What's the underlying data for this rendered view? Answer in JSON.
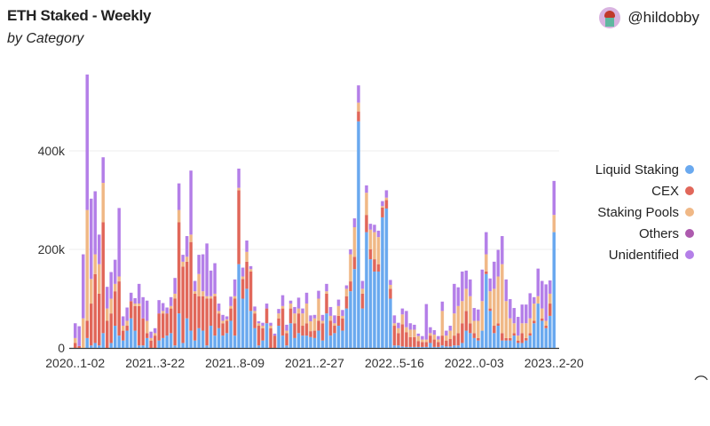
{
  "header": {
    "title": "ETH Staked - Weekly",
    "subtitle": "by Category",
    "author": "@hildobby"
  },
  "chart_data": {
    "type": "bar",
    "stacked": true,
    "title": "ETH Staked - Weekly",
    "subtitle": "by Category",
    "xlabel": "",
    "ylabel": "",
    "ylim": [
      0,
      570000
    ],
    "yticks": [
      0,
      200000,
      400000
    ],
    "ytick_labels": [
      "0",
      "200k",
      "400k"
    ],
    "xtick_every": 20,
    "xtick_labels": [
      "2020..1-02",
      "2021..3-22",
      "2021..8-09",
      "2021..2-27",
      "2022..5-16",
      "2022..0-03",
      "2023..2-20"
    ],
    "grid": true,
    "legend_position": "right",
    "unit_scale": 1000,
    "series": [
      {
        "name": "Liquid Staking",
        "color": "#6aa9ef",
        "values": [
          0,
          0,
          0,
          20,
          5,
          10,
          5,
          30,
          0,
          10,
          45,
          25,
          15,
          35,
          60,
          35,
          5,
          5,
          20,
          0,
          0,
          15,
          20,
          25,
          30,
          5,
          70,
          10,
          60,
          35,
          15,
          40,
          35,
          5,
          45,
          25,
          40,
          25,
          30,
          55,
          25,
          170,
          100,
          120,
          75,
          40,
          5,
          15,
          50,
          0,
          0,
          45,
          25,
          5,
          50,
          20,
          30,
          25,
          25,
          22,
          20,
          35,
          15,
          70,
          25,
          30,
          45,
          35,
          80,
          115,
          160,
          460,
          80,
          235,
          180,
          155,
          155,
          265,
          283,
          100,
          5,
          5,
          3,
          2,
          2,
          2,
          2,
          2,
          2,
          10,
          2,
          2,
          5,
          3,
          3,
          5,
          5,
          10,
          35,
          30,
          20,
          15,
          35,
          150,
          75,
          30,
          45,
          15,
          15,
          15,
          25,
          10,
          10,
          15,
          25,
          50,
          90,
          55,
          40,
          65,
          235
        ]
      },
      {
        "name": "CEX",
        "color": "#e1675a",
        "values": [
          10,
          4,
          0,
          35,
          85,
          140,
          105,
          225,
          55,
          60,
          70,
          110,
          20,
          10,
          35,
          50,
          80,
          55,
          10,
          15,
          25,
          55,
          50,
          45,
          50,
          95,
          185,
          155,
          115,
          180,
          95,
          65,
          70,
          95,
          55,
          80,
          30,
          25,
          25,
          25,
          75,
          150,
          40,
          55,
          80,
          30,
          40,
          25,
          30,
          40,
          25,
          15,
          55,
          25,
          30,
          30,
          40,
          20,
          25,
          12,
          15,
          20,
          35,
          40,
          30,
          15,
          20,
          25,
          25,
          20,
          25,
          20,
          30,
          35,
          20,
          25,
          15,
          20,
          17,
          20,
          40,
          25,
          45,
          30,
          20,
          20,
          12,
          10,
          10,
          15,
          15,
          10,
          20,
          12,
          15,
          20,
          25,
          40,
          40,
          20,
          10,
          5,
          0,
          5,
          5,
          15,
          5,
          15,
          5,
          5,
          5,
          5,
          20,
          5,
          5,
          5,
          0,
          5,
          5,
          25,
          0
        ]
      },
      {
        "name": "Staking Pools",
        "color": "#f0b886",
        "values": [
          10,
          0,
          60,
          225,
          50,
          40,
          60,
          80,
          25,
          30,
          15,
          10,
          10,
          10,
          0,
          5,
          5,
          0,
          25,
          5,
          5,
          0,
          5,
          0,
          5,
          10,
          25,
          10,
          10,
          15,
          5,
          45,
          10,
          5,
          5,
          5,
          5,
          5,
          3,
          5,
          5,
          5,
          5,
          20,
          5,
          5,
          5,
          5,
          0,
          5,
          0,
          10,
          5,
          5,
          10,
          20,
          10,
          25,
          40,
          20,
          25,
          45,
          5,
          5,
          10,
          5,
          20,
          5,
          15,
          55,
          60,
          18,
          10,
          45,
          40,
          55,
          55,
          3,
          5,
          8,
          5,
          10,
          20,
          10,
          15,
          15,
          10,
          5,
          5,
          5,
          10,
          5,
          50,
          10,
          17,
          45,
          55,
          45,
          45,
          55,
          25,
          35,
          60,
          35,
          35,
          75,
          95,
          140,
          75,
          40,
          20,
          10,
          20,
          30,
          30,
          35,
          15,
          20,
          10,
          20,
          35
        ]
      },
      {
        "name": "Others",
        "color": "#ad5aae",
        "values": [
          0,
          0,
          0,
          0,
          0,
          0,
          0,
          0,
          0,
          0,
          0,
          0,
          0,
          0,
          0,
          0,
          0,
          0,
          0,
          0,
          0,
          0,
          0,
          0,
          0,
          0,
          0,
          0,
          0,
          0,
          0,
          0,
          0,
          0,
          0,
          0,
          0,
          0,
          0,
          0,
          0,
          0,
          0,
          0,
          0,
          0,
          0,
          0,
          0,
          0,
          0,
          0,
          0,
          0,
          0,
          0,
          0,
          0,
          0,
          0,
          0,
          0,
          0,
          0,
          0,
          0,
          0,
          0,
          0,
          0,
          0,
          0,
          0,
          0,
          0,
          0,
          0,
          0,
          0,
          0,
          0,
          0,
          0,
          0,
          0,
          0,
          0,
          0,
          0,
          0,
          0,
          0,
          0,
          0,
          0,
          0,
          0,
          0,
          0,
          0,
          0,
          0,
          0,
          0,
          0,
          0,
          0,
          0,
          0,
          0,
          0,
          0,
          0,
          0,
          0,
          0,
          0,
          0,
          0,
          0,
          0
        ]
      },
      {
        "name": "Unidentified",
        "color": "#b47fe8",
        "values": [
          30,
          40,
          130,
          275,
          163,
          128,
          60,
          52,
          44,
          54,
          49,
          139,
          19,
          27,
          17,
          11,
          40,
          43,
          41,
          13,
          10,
          27,
          16,
          12,
          18,
          32,
          54,
          14,
          42,
          130,
          21,
          39,
          75,
          107,
          52,
          62,
          15,
          12,
          6,
          19,
          34,
          39,
          18,
          23,
          6,
          9,
          4,
          6,
          10,
          6,
          4,
          9,
          22,
          12,
          6,
          13,
          22,
          10,
          22,
          12,
          7,
          16,
          12,
          15,
          18,
          16,
          13,
          12,
          7,
          10,
          18,
          35,
          16,
          15,
          12,
          15,
          13,
          10,
          15,
          10,
          16,
          11,
          12,
          33,
          13,
          10,
          5,
          7,
          72,
          12,
          9,
          7,
          19,
          10,
          10,
          60,
          38,
          60,
          37,
          34,
          26,
          23,
          64,
          45,
          26,
          55,
          54,
          57,
          44,
          39,
          31,
          38,
          38,
          38,
          51,
          13,
          56,
          56,
          74,
          27,
          69
        ]
      }
    ]
  }
}
